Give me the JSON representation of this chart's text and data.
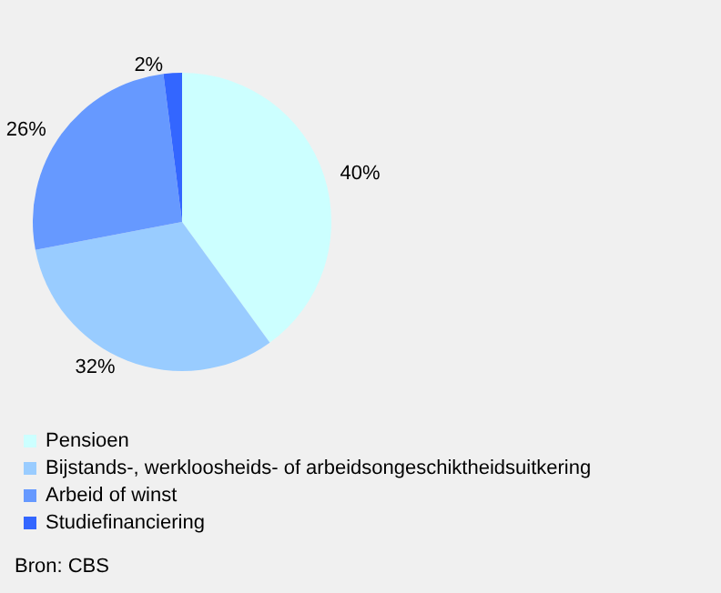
{
  "chart_data": {
    "type": "pie",
    "categories": [
      "Pensioen",
      "Bijstands-, werkloosheids- of arbeidsongeschiktheidsuitkering",
      "Arbeid of winst",
      "Studiefinanciering"
    ],
    "values": [
      40,
      32,
      26,
      2
    ],
    "colors": [
      "#ccffff",
      "#99ccff",
      "#6699ff",
      "#3366ff"
    ],
    "value_labels": [
      "40%",
      "32%",
      "26%",
      "2%"
    ],
    "legend": "bottom",
    "annotations": [
      "Bron: CBS"
    ]
  }
}
